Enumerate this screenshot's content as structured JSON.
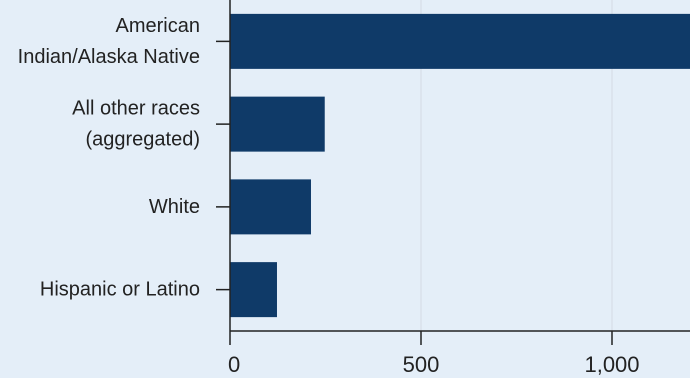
{
  "chart_data": {
    "type": "bar",
    "orientation": "horizontal",
    "categories": [
      [
        "American",
        "Indian/Alaska Native"
      ],
      [
        "All other races",
        "(aggregated)"
      ],
      [
        "White"
      ],
      [
        "Hispanic or Latino"
      ]
    ],
    "values": [
      1250,
      248,
      212,
      123
    ],
    "xlim": [
      0,
      1200
    ],
    "x_ticks": [
      0,
      500,
      1000
    ],
    "x_tick_labels": [
      "0",
      "500",
      "1,000"
    ],
    "grid": "vertical",
    "title": "",
    "xlabel": "",
    "ylabel": "",
    "colors": {
      "bar": "#0f3a68",
      "background": "#e4eef8",
      "grid": "#d3dbe3",
      "axis": "#222222"
    }
  }
}
